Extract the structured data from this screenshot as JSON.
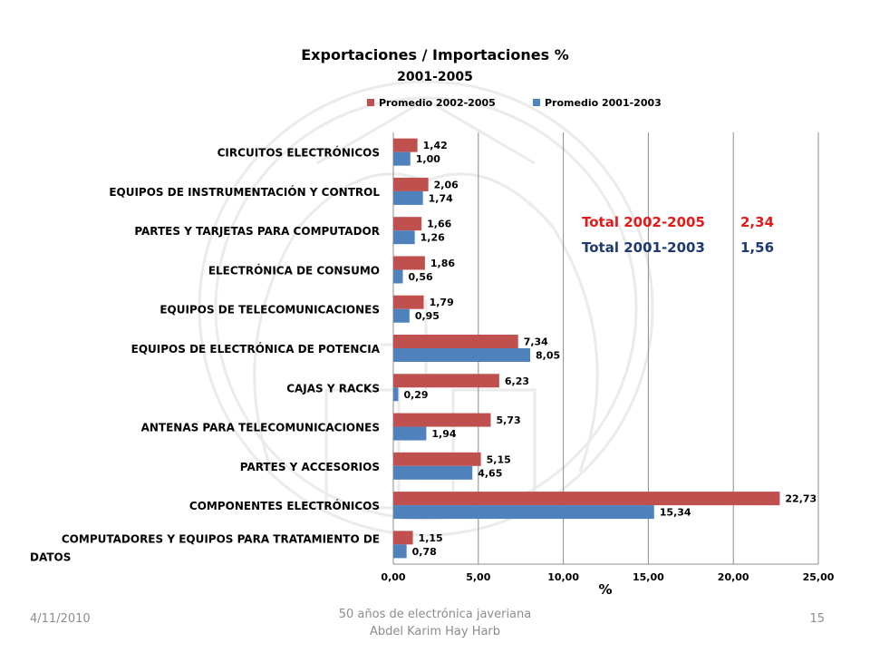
{
  "chart_data": {
    "type": "bar",
    "orientation": "horizontal",
    "title": "Exportaciones  / Importaciones  %",
    "subtitle": "2001-2005",
    "xlabel": "%",
    "xlim": [
      0,
      25
    ],
    "xticks": [
      "0,00",
      "5,00",
      "10,00",
      "15,00",
      "20,00",
      "25,00"
    ],
    "grid": "vertical",
    "legend_position": "top",
    "categories": [
      "CIRCUITOS ELECTRÓNICOS",
      "EQUIPOS DE INSTRUMENTACIÓN Y CONTROL",
      "PARTES Y TARJETAS PARA COMPUTADOR",
      "ELECTRÓNICA DE CONSUMO",
      "EQUIPOS DE TELECOMUNICACIONES",
      "EQUIPOS DE ELECTRÓNICA DE POTENCIA",
      "CAJAS Y RACKS",
      "ANTENAS PARA TELECOMUNICACIONES",
      "PARTES Y ACCESORIOS",
      "COMPONENTES ELECTRÓNICOS",
      "COMPUTADORES Y EQUIPOS PARA TRATAMIENTO DE DATOS"
    ],
    "series": [
      {
        "name": "Promedio 2002-2005",
        "color": "#c0504d",
        "values": [
          1.42,
          2.06,
          1.66,
          1.86,
          1.79,
          7.34,
          6.23,
          5.73,
          5.15,
          22.73,
          1.15
        ],
        "labels": [
          "1,42",
          "2,06",
          "1,66",
          "1,86",
          "1,79",
          "7,34",
          "6,23",
          "5,73",
          "5,15",
          "22,73",
          "1,15"
        ]
      },
      {
        "name": "Promedio 2001-2003",
        "color": "#4f81bd",
        "values": [
          1.0,
          1.74,
          1.26,
          0.56,
          0.95,
          8.05,
          0.29,
          1.94,
          4.65,
          15.34,
          0.78
        ],
        "labels": [
          "1,00",
          "1,74",
          "1,26",
          "0,56",
          "0,95",
          "8,05",
          "0,29",
          "1,94",
          "4,65",
          "15,34",
          "0,78"
        ]
      }
    ],
    "annotations": [
      {
        "label": "Total  2002-2005",
        "value": "2,34",
        "color": "#e31b1b"
      },
      {
        "label": "Total  2001-2003",
        "value": "1,56",
        "color": "#1f3a72"
      }
    ]
  },
  "footer": {
    "date": "4/11/2010",
    "center_line1": "50 años de electrónica javeriana",
    "center_line2": "Abdel Karim Hay Harb",
    "page": "15"
  },
  "colors": {
    "grid": "#8c8c8c",
    "text": "#000000"
  }
}
